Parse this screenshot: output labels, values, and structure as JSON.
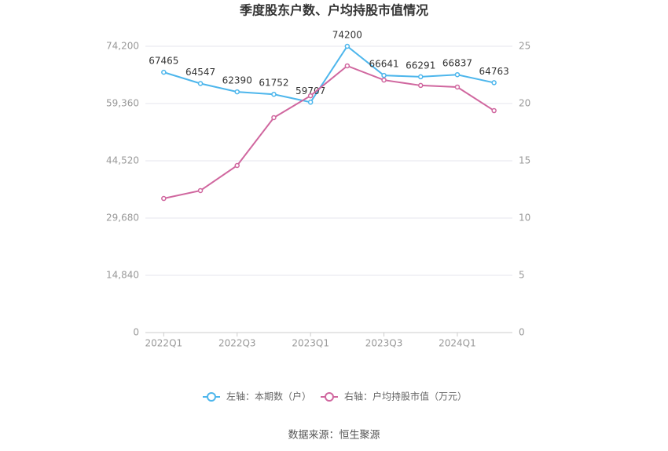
{
  "chart_data": {
    "type": "line",
    "title": "季度股东户数、户均持股市值情况",
    "categories": [
      "2022Q1",
      null,
      "2022Q3",
      null,
      "2023Q1",
      null,
      "2023Q3",
      null,
      "2024Q1",
      null
    ],
    "series": [
      {
        "name": "左轴：本期数（户）",
        "color": "#4db6ec",
        "values": [
          67465,
          64547,
          62390,
          61752,
          59707,
          74200,
          66641,
          66291,
          66837,
          64763
        ]
      },
      {
        "name": "右轴：户均持股市值（万元）",
        "color": "#d0679f",
        "axis": "y2",
        "values": [
          11.71,
          12.4,
          14.59,
          18.77,
          20.68,
          23.29,
          22.05,
          21.58,
          21.44,
          19.38
        ]
      }
    ],
    "ylim": [
      0,
      74200
    ],
    "yticks": [
      0,
      {
        "value": 14840,
        "label": "14,840"
      },
      {
        "value": 29680,
        "label": "29,680"
      },
      {
        "value": 44520,
        "label": "44,520"
      },
      {
        "value": 59360,
        "label": "59,360"
      },
      {
        "value": 74200,
        "label": "74,200"
      }
    ],
    "y2lim": [
      0,
      25
    ],
    "y2ticks": [
      0,
      5,
      10,
      15,
      20,
      25
    ],
    "grid": true,
    "legend": "bottom",
    "source": "数据来源：恒生聚源"
  }
}
